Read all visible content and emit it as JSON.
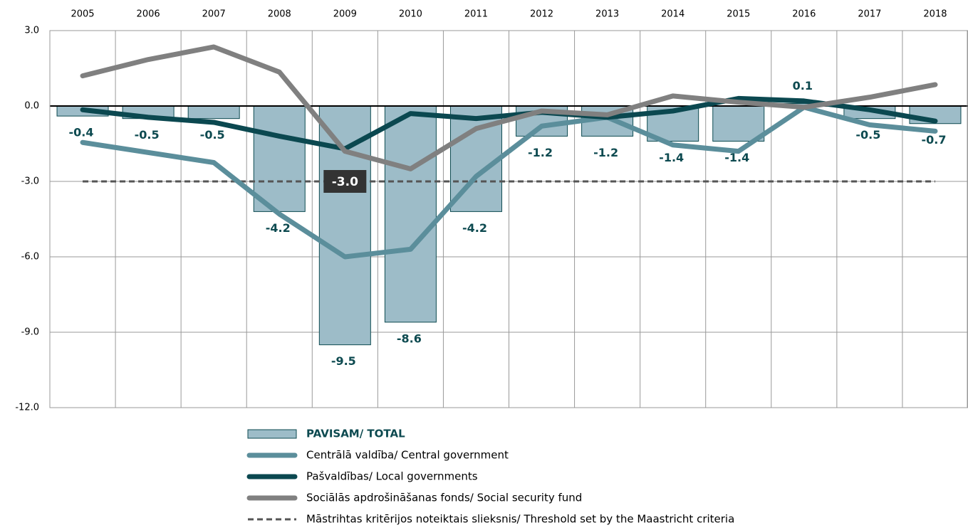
{
  "chart_data": {
    "type": "bar_line",
    "categories": [
      "2005",
      "2006",
      "2007",
      "2008",
      "2009",
      "2010",
      "2011",
      "2012",
      "2013",
      "2014",
      "2015",
      "2016",
      "2017",
      "2018"
    ],
    "ylim": [
      -12,
      3
    ],
    "yticks": [
      {
        "value": 3,
        "label": "3.0"
      },
      {
        "value": 0,
        "label": "0.0"
      },
      {
        "value": -3,
        "label": "-3.0"
      },
      {
        "value": -6,
        "label": "-6.0"
      },
      {
        "value": -9,
        "label": "-9.0"
      },
      {
        "value": -12,
        "label": "-12.0"
      }
    ],
    "grid": true,
    "series": [
      {
        "name": "PAVISAM/ TOTAL",
        "type": "bar",
        "color": "#9dbcc8",
        "values": [
          -0.4,
          -0.5,
          -0.5,
          -4.2,
          -9.5,
          -8.6,
          -4.2,
          -1.2,
          -1.2,
          -1.4,
          -1.4,
          0.1,
          -0.5,
          -0.7
        ]
      },
      {
        "name": "Centrālā valdība/ Central government",
        "type": "line",
        "color": "#5b8e9b",
        "values": [
          -1.45,
          -1.85,
          -2.25,
          -4.3,
          -6.0,
          -5.7,
          -2.8,
          -0.8,
          -0.45,
          -1.55,
          -1.8,
          -0.05,
          -0.75,
          -1.0
        ]
      },
      {
        "name": "Pašvaldības/ Local governments",
        "type": "line",
        "color": "#0b4850",
        "values": [
          -0.15,
          -0.45,
          -0.65,
          -1.2,
          -1.7,
          -0.3,
          -0.5,
          -0.25,
          -0.45,
          -0.2,
          0.3,
          0.2,
          -0.15,
          -0.6
        ]
      },
      {
        "name": "Sociālās apdrošināšanas fonds/ Social security fund",
        "type": "line",
        "color": "#808080",
        "values": [
          1.2,
          1.85,
          2.35,
          1.35,
          -1.8,
          -2.5,
          -0.9,
          -0.2,
          -0.35,
          0.4,
          0.15,
          -0.05,
          0.35,
          0.85
        ]
      }
    ],
    "threshold": {
      "name": "Māstrihtas kritērijos noteiktais slieksnis/ Threshold set by the Maastricht criteria",
      "value": -3,
      "label": "-3.0",
      "color": "#555555"
    }
  }
}
